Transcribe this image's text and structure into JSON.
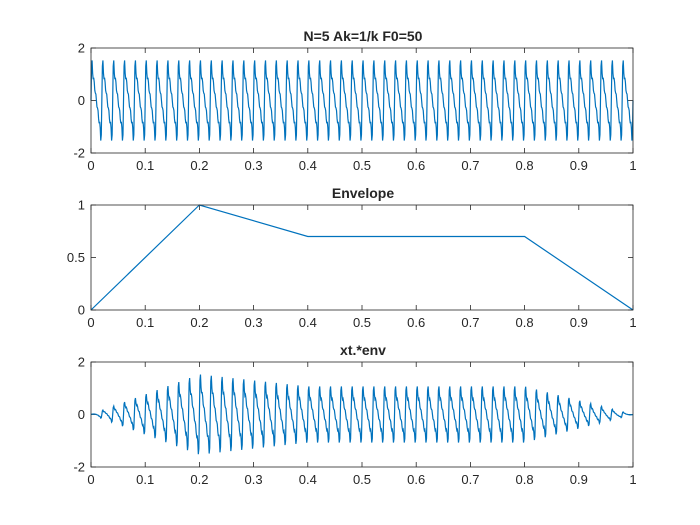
{
  "chart_data": [
    {
      "type": "line",
      "title": "N=5 Ak=1/k F0=50",
      "xlabel": "",
      "ylabel": "",
      "xlim": [
        0,
        1
      ],
      "ylim": [
        -2,
        2
      ],
      "xticks": [
        "0",
        "0.1",
        "0.2",
        "0.3",
        "0.4",
        "0.5",
        "0.6",
        "0.7",
        "0.8",
        "0.9",
        "1"
      ],
      "yticks": [
        "-2",
        "0",
        "2"
      ],
      "grid": false,
      "series": [
        {
          "color": "#0072BD",
          "signal": "x(t) = sum_{k=1..5} (1/k) sin(2*pi*k*50*t), sampled at 0.001 s from 0 to 1",
          "N": 5,
          "F0": 50,
          "Ak": "1/k",
          "fs": 1000
        }
      ]
    },
    {
      "type": "line",
      "title": "Envelope",
      "xlabel": "",
      "ylabel": "",
      "xlim": [
        0,
        1
      ],
      "ylim": [
        0,
        1
      ],
      "xticks": [
        "0",
        "0.1",
        "0.2",
        "0.3",
        "0.4",
        "0.5",
        "0.6",
        "0.7",
        "0.8",
        "0.9",
        "1"
      ],
      "yticks": [
        "0",
        "0.5",
        "1"
      ],
      "grid": false,
      "series": [
        {
          "color": "#0072BD",
          "x": [
            0,
            0.2,
            0.4,
            0.8,
            1.0
          ],
          "y": [
            0,
            1.0,
            0.7,
            0.7,
            0
          ]
        }
      ]
    },
    {
      "type": "line",
      "title": "xt.*env",
      "xlabel": "",
      "ylabel": "",
      "xlim": [
        0,
        1
      ],
      "ylim": [
        -2,
        2
      ],
      "xticks": [
        "0",
        "0.1",
        "0.2",
        "0.3",
        "0.4",
        "0.5",
        "0.6",
        "0.7",
        "0.8",
        "0.9",
        "1"
      ],
      "yticks": [
        "-2",
        "0",
        "2"
      ],
      "grid": false,
      "series": [
        {
          "color": "#0072BD",
          "signal": "product of the top signal and the envelope"
        }
      ]
    }
  ]
}
